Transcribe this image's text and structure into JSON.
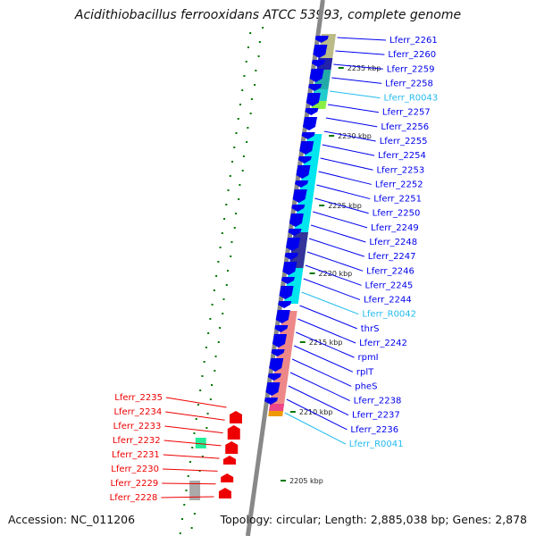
{
  "title": "Acidithiobacillus ferrooxidans ATCC 53993, complete genome",
  "accession": "Accession: NC_011206",
  "summary": "Topology: circular; Length: 2,885,038 bp; Genes: 2,878",
  "colors": {
    "forward_gene": "#0000ee",
    "reverse_gene": "#ee0000",
    "rna": "#22bbee",
    "backbone": "#888888",
    "tick": "#007700"
  },
  "kbp_markers": [
    {
      "label": "2235 kbp"
    },
    {
      "label": "2230 kbp"
    },
    {
      "label": "2225 kbp"
    },
    {
      "label": "2220 kbp"
    },
    {
      "label": "2215 kbp"
    },
    {
      "label": "2210 kbp"
    },
    {
      "label": "2205 kbp"
    }
  ],
  "forward_genes": [
    {
      "label": "Lferr_2261",
      "type": "gene"
    },
    {
      "label": "Lferr_2260",
      "type": "gene"
    },
    {
      "label": "Lferr_2259",
      "type": "gene"
    },
    {
      "label": "Lferr_2258",
      "type": "gene"
    },
    {
      "label": "Lferr_R0043",
      "type": "rna"
    },
    {
      "label": "Lferr_2257",
      "type": "gene"
    },
    {
      "label": "Lferr_2256",
      "type": "gene"
    },
    {
      "label": "Lferr_2255",
      "type": "gene"
    },
    {
      "label": "Lferr_2254",
      "type": "gene"
    },
    {
      "label": "Lferr_2253",
      "type": "gene"
    },
    {
      "label": "Lferr_2252",
      "type": "gene"
    },
    {
      "label": "Lferr_2251",
      "type": "gene"
    },
    {
      "label": "Lferr_2250",
      "type": "gene"
    },
    {
      "label": "Lferr_2249",
      "type": "gene"
    },
    {
      "label": "Lferr_2248",
      "type": "gene"
    },
    {
      "label": "Lferr_2247",
      "type": "gene"
    },
    {
      "label": "Lferr_2246",
      "type": "gene"
    },
    {
      "label": "Lferr_2245",
      "type": "gene"
    },
    {
      "label": "Lferr_2244",
      "type": "gene"
    },
    {
      "label": "Lferr_R0042",
      "type": "rna"
    },
    {
      "label": "thrS",
      "type": "gene"
    },
    {
      "label": "Lferr_2242",
      "type": "gene"
    },
    {
      "label": "rpmI",
      "type": "gene"
    },
    {
      "label": "rplT",
      "type": "gene"
    },
    {
      "label": "pheS",
      "type": "gene"
    },
    {
      "label": "Lferr_2238",
      "type": "gene"
    },
    {
      "label": "Lferr_2237",
      "type": "gene"
    },
    {
      "label": "Lferr_2236",
      "type": "gene"
    },
    {
      "label": "Lferr_R0041",
      "type": "rna"
    }
  ],
  "reverse_genes": [
    {
      "label": "Lferr_2235"
    },
    {
      "label": "Lferr_2234"
    },
    {
      "label": "Lferr_2233"
    },
    {
      "label": "Lferr_2232"
    },
    {
      "label": "Lferr_2231"
    },
    {
      "label": "Lferr_2230"
    },
    {
      "label": "Lferr_2229"
    },
    {
      "label": "Lferr_2228"
    }
  ]
}
